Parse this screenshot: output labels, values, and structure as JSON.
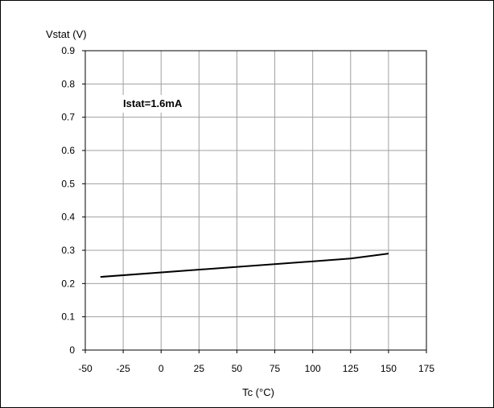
{
  "chart_data": {
    "type": "line",
    "title": "",
    "ylabel": "Vstat (V)",
    "xlabel": "Tc (°C)",
    "xlim": [
      -50,
      175
    ],
    "ylim": [
      0,
      0.9
    ],
    "x_ticks": [
      "-50",
      "-25",
      "0",
      "25",
      "50",
      "75",
      "100",
      "125",
      "150",
      "175"
    ],
    "y_ticks": [
      "0",
      "0.1",
      "0.2",
      "0.3",
      "0.4",
      "0.5",
      "0.6",
      "0.7",
      "0.8",
      "0.9"
    ],
    "grid": true,
    "annotation": "Istat=1.6mA",
    "series": [
      {
        "x": [
          -40,
          125,
          150
        ],
        "y": [
          0.22,
          0.275,
          0.29
        ]
      }
    ],
    "colors": {
      "line": "#000000",
      "grid": "#a0a0a0",
      "axes": "#000000"
    }
  }
}
